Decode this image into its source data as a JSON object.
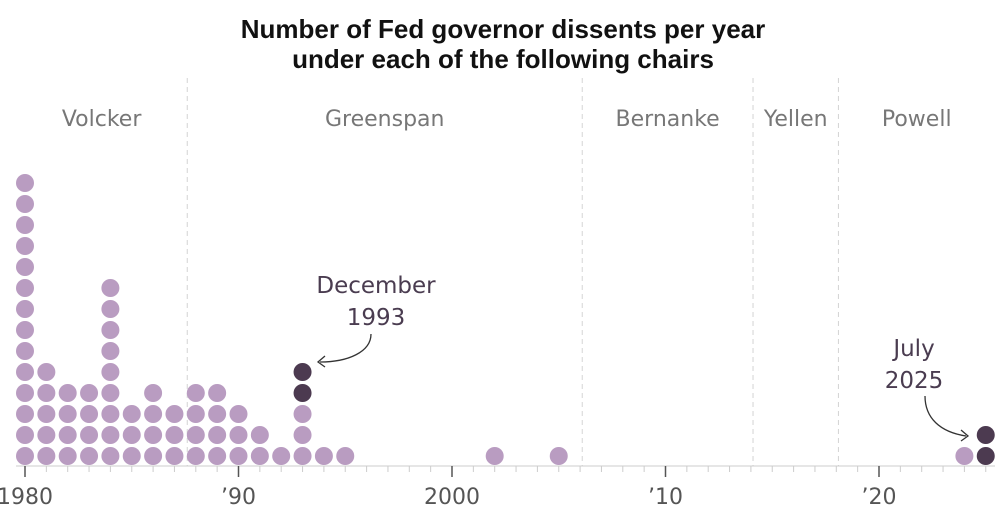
{
  "chart_data": {
    "type": "dot",
    "title": "Number of Fed governor dissents per year",
    "subtitle": "under each of the following chairs",
    "x_label": "",
    "y_label": "",
    "x_range": [
      1979.5,
      2025.5
    ],
    "x_ticks": [
      {
        "year": 1980,
        "label": "1980"
      },
      {
        "year": 1990,
        "label": "’90"
      },
      {
        "year": 2000,
        "label": "2000"
      },
      {
        "year": 2010,
        "label": "’10"
      },
      {
        "year": 2020,
        "label": "’20"
      }
    ],
    "chairs": [
      {
        "name": "Volcker",
        "start": 1979.5
      },
      {
        "name": "Greenspan",
        "start": 1987.6
      },
      {
        "name": "Bernanke",
        "start": 2006.1
      },
      {
        "name": "Yellen",
        "start": 2014.1
      },
      {
        "name": "Powell",
        "start": 2018.1
      }
    ],
    "series": [
      {
        "name": "Dissents per year",
        "color": "#b99cc1",
        "highlight_color": "#4c3a50",
        "points": [
          {
            "year": 1980,
            "value": 14
          },
          {
            "year": 1981,
            "value": 5
          },
          {
            "year": 1982,
            "value": 4
          },
          {
            "year": 1983,
            "value": 4
          },
          {
            "year": 1984,
            "value": 9
          },
          {
            "year": 1985,
            "value": 3
          },
          {
            "year": 1986,
            "value": 4
          },
          {
            "year": 1987,
            "value": 3
          },
          {
            "year": 1988,
            "value": 4
          },
          {
            "year": 1989,
            "value": 4
          },
          {
            "year": 1990,
            "value": 3
          },
          {
            "year": 1991,
            "value": 2
          },
          {
            "year": 1992,
            "value": 1
          },
          {
            "year": 1993,
            "value": 5,
            "highlighted": 2
          },
          {
            "year": 1994,
            "value": 1
          },
          {
            "year": 1995,
            "value": 1
          },
          {
            "year": 2002,
            "value": 1
          },
          {
            "year": 2005,
            "value": 1
          },
          {
            "year": 2024,
            "value": 1
          },
          {
            "year": 2025,
            "value": 2,
            "highlighted": 2
          }
        ]
      }
    ],
    "annotations": [
      {
        "lines": [
          "December",
          "1993"
        ],
        "target_year": 1993
      },
      {
        "lines": [
          "July",
          "2025"
        ],
        "target_year": 2025
      }
    ]
  }
}
